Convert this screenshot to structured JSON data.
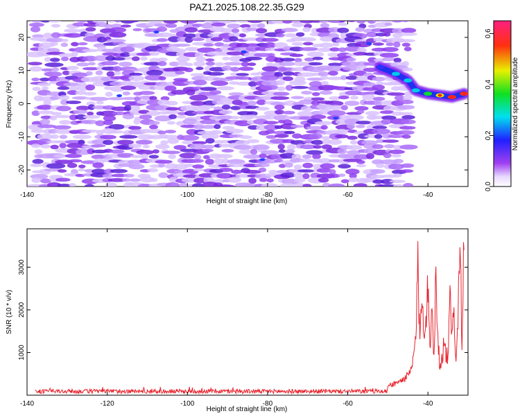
{
  "title": "PAZ1.2025.108.22.35.G29",
  "colors": {
    "snr_line": "#e8202a",
    "axis": "#000000"
  },
  "chart_data": [
    {
      "type": "heatmap",
      "title": "PAZ1.2025.108.22.35.G29",
      "xlabel": "Height of straight line (km)",
      "ylabel": "Frequency (Hz)",
      "xlim": [
        -140,
        -30
      ],
      "ylim": [
        -25,
        25
      ],
      "x_ticks": [
        -140,
        -120,
        -100,
        -80,
        -60,
        -40
      ],
      "y_ticks": [
        -20,
        -10,
        0,
        10,
        20
      ],
      "colorbar": {
        "label": "Normalized spectral amplitude",
        "range": [
          0.0,
          0.65
        ],
        "ticks": [
          "0.0",
          "0.2",
          "0.4",
          "0.6"
        ],
        "colormap": "rainbow (white → violet → blue → cyan → green → yellow → red → magenta)"
      },
      "noise_region": {
        "x_range": [
          -138,
          -45
        ],
        "y_range": [
          -25,
          25
        ],
        "typical_amplitude": [
          0.05,
          0.15
        ]
      },
      "signal_track": [
        {
          "x": -52,
          "y": 11,
          "amplitude": 0.18
        },
        {
          "x": -48,
          "y": 9,
          "amplitude": 0.2
        },
        {
          "x": -45,
          "y": 7,
          "amplitude": 0.22
        },
        {
          "x": -43,
          "y": 4,
          "amplitude": 0.25
        },
        {
          "x": -40,
          "y": 3,
          "amplitude": 0.3
        },
        {
          "x": -37,
          "y": 2.5,
          "amplitude": 0.45
        },
        {
          "x": -34,
          "y": 2,
          "amplitude": 0.55
        },
        {
          "x": -31,
          "y": 3,
          "amplitude": 0.5
        }
      ]
    },
    {
      "type": "line",
      "xlabel": "Height of straight line (km)",
      "ylabel": "SNR (10 * v/v)",
      "xlim": [
        -140,
        -30
      ],
      "ylim": [
        0,
        3900
      ],
      "x_ticks": [
        -140,
        -120,
        -100,
        -80,
        -60,
        -40
      ],
      "y_ticks": [
        1000,
        2000,
        3000
      ],
      "baseline_level": [
        40,
        140
      ],
      "series": [
        {
          "x": [
            -138,
            -130,
            -120,
            -110,
            -100,
            -90,
            -80,
            -70,
            -60,
            -55,
            -50,
            -47,
            -45,
            -44,
            -43,
            -42.5,
            -42,
            -41.5,
            -41,
            -40,
            -39.5,
            -39,
            -38.5,
            -38,
            -37.5,
            -37,
            -36,
            -35,
            -34.5,
            -34,
            -33.5,
            -33,
            -32.5,
            -32,
            -31.5,
            -31
          ],
          "y": [
            110,
            100,
            115,
            105,
            110,
            100,
            120,
            110,
            130,
            170,
            220,
            320,
            450,
            600,
            1400,
            2950,
            1200,
            2500,
            1600,
            2350,
            1200,
            2100,
            1000,
            2800,
            1400,
            600,
            1200,
            800,
            2200,
            1300,
            2000,
            1000,
            1800,
            3850,
            1300,
            3400
          ]
        }
      ]
    }
  ]
}
